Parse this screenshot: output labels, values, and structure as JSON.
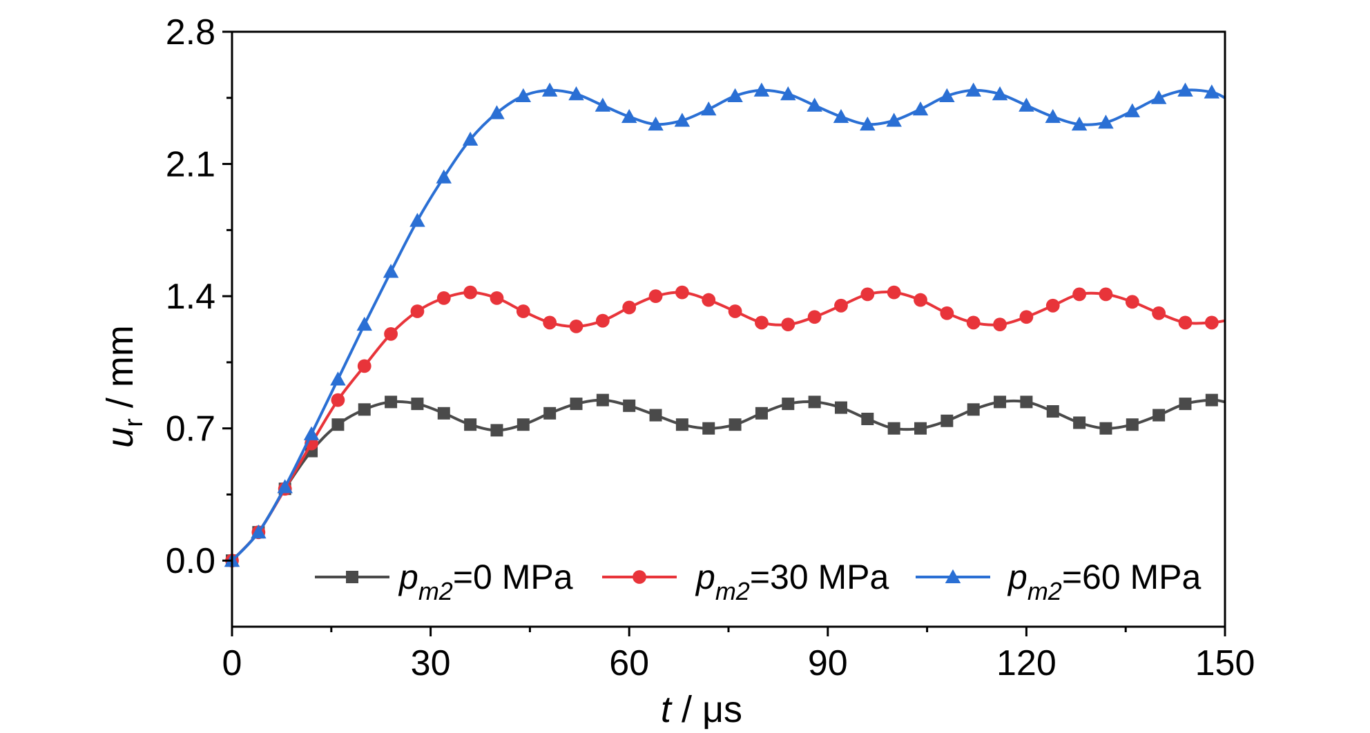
{
  "chart_data": {
    "type": "line",
    "xlabel": {
      "var": "t",
      "unit": " / μs"
    },
    "ylabel": {
      "var": "u",
      "sub": "r",
      "unit": " / mm"
    },
    "xlim": [
      0,
      150
    ],
    "ylim": [
      -0.35,
      2.8
    ],
    "xticks": [
      "0",
      "30",
      "60",
      "90",
      "120",
      "150"
    ],
    "yticks": [
      "0.0",
      "0.7",
      "1.4",
      "2.1",
      "2.8"
    ],
    "grid": false,
    "legend_position": "bottom",
    "series": [
      {
        "name": {
          "var": "p",
          "sub": "m2",
          "rest": "=0 MPa"
        },
        "color": "#4a4a4a",
        "marker": "square",
        "x": [
          0,
          4,
          8,
          12,
          16,
          20,
          24,
          28,
          32,
          36,
          40,
          44,
          48,
          52,
          56,
          60,
          64,
          68,
          72,
          76,
          80,
          84,
          88,
          92,
          96,
          100,
          104,
          108,
          112,
          116,
          120,
          124,
          128,
          132,
          136,
          140,
          144,
          148,
          150
        ],
        "values": [
          0.0,
          0.15,
          0.38,
          0.58,
          0.72,
          0.8,
          0.84,
          0.83,
          0.78,
          0.72,
          0.69,
          0.72,
          0.78,
          0.83,
          0.85,
          0.82,
          0.77,
          0.72,
          0.7,
          0.72,
          0.78,
          0.83,
          0.84,
          0.81,
          0.75,
          0.7,
          0.7,
          0.74,
          0.8,
          0.84,
          0.84,
          0.79,
          0.73,
          0.7,
          0.72,
          0.77,
          0.83,
          0.85,
          0.84
        ]
      },
      {
        "name": {
          "var": "p",
          "sub": "m2",
          "rest": "=30 MPa"
        },
        "color": "#e8343a",
        "marker": "circle",
        "x": [
          0,
          4,
          8,
          12,
          16,
          20,
          24,
          28,
          32,
          36,
          40,
          44,
          48,
          52,
          56,
          60,
          64,
          68,
          72,
          76,
          80,
          84,
          88,
          92,
          96,
          100,
          104,
          108,
          112,
          116,
          120,
          124,
          128,
          132,
          136,
          140,
          144,
          148,
          150
        ],
        "values": [
          0.0,
          0.15,
          0.38,
          0.62,
          0.85,
          1.03,
          1.2,
          1.32,
          1.39,
          1.42,
          1.39,
          1.32,
          1.26,
          1.24,
          1.27,
          1.34,
          1.4,
          1.42,
          1.38,
          1.32,
          1.26,
          1.25,
          1.29,
          1.35,
          1.41,
          1.42,
          1.38,
          1.31,
          1.26,
          1.25,
          1.29,
          1.35,
          1.41,
          1.41,
          1.37,
          1.31,
          1.26,
          1.26,
          1.27
        ]
      },
      {
        "name": {
          "var": "p",
          "sub": "m2",
          "rest": "=60 MPa"
        },
        "color": "#2a6fd4",
        "marker": "triangle",
        "x": [
          0,
          4,
          8,
          12,
          16,
          20,
          24,
          28,
          32,
          36,
          40,
          44,
          48,
          52,
          56,
          60,
          64,
          68,
          72,
          76,
          80,
          84,
          88,
          92,
          96,
          100,
          104,
          108,
          112,
          116,
          120,
          124,
          128,
          132,
          136,
          140,
          144,
          148,
          150
        ],
        "values": [
          0.0,
          0.15,
          0.39,
          0.67,
          0.96,
          1.25,
          1.53,
          1.8,
          2.03,
          2.23,
          2.37,
          2.46,
          2.49,
          2.47,
          2.41,
          2.35,
          2.31,
          2.33,
          2.39,
          2.46,
          2.49,
          2.47,
          2.41,
          2.35,
          2.31,
          2.33,
          2.39,
          2.46,
          2.49,
          2.47,
          2.41,
          2.35,
          2.31,
          2.32,
          2.38,
          2.45,
          2.49,
          2.48,
          2.45
        ]
      }
    ]
  }
}
